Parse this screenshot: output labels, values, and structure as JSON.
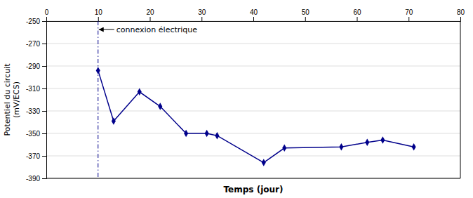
{
  "chart_data": {
    "type": "line",
    "x": [
      10,
      13,
      18,
      22,
      27,
      31,
      33,
      42,
      46,
      57,
      62,
      65,
      71
    ],
    "values": [
      -294,
      -339,
      -313,
      -326,
      -350,
      -350,
      -352,
      -376,
      -363,
      -362,
      -358,
      -356,
      -362
    ],
    "color": "#00008B",
    "marker": "diamond",
    "xlabel": "Temps (jour)",
    "ylabel": "Potentiel du circuit\n(mV/ECS)",
    "xlim": [
      0,
      80
    ],
    "ylim": [
      -390,
      -250
    ],
    "xticks": [
      0,
      10,
      20,
      30,
      40,
      50,
      60,
      70,
      80
    ],
    "yticks": [
      -390,
      -370,
      -350,
      -330,
      -310,
      -290,
      -270,
      -250
    ],
    "grid": true,
    "annotations": [
      {
        "text": "connexion électrique",
        "x": 10
      }
    ]
  }
}
